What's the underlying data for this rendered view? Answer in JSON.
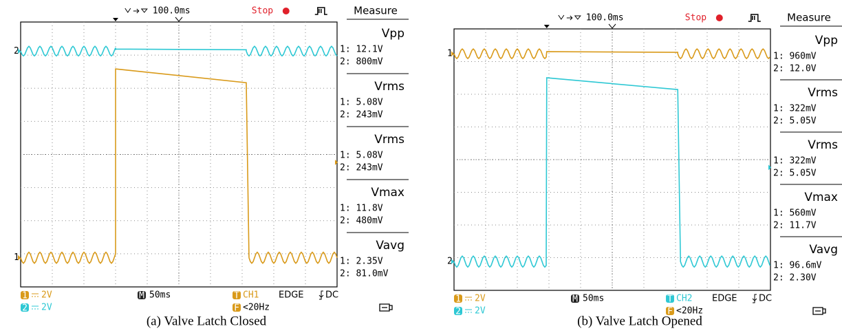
{
  "panels": [
    {
      "header": {
        "timebase": "100.0ms",
        "status": "Stop",
        "measure_title": "Measure"
      },
      "markers": {
        "top_channel": "2",
        "bottom_channel": "1"
      },
      "measurements": [
        {
          "name": "Vpp",
          "ch1": "1: 12.1V",
          "ch2": "2: 800mV"
        },
        {
          "name": "Vrms",
          "ch1": "1: 5.08V",
          "ch2": "2: 243mV"
        },
        {
          "name": "Vrms",
          "ch1": "1: 5.08V",
          "ch2": "2: 243mV"
        },
        {
          "name": "Vmax",
          "ch1": "1: 11.8V",
          "ch2": "2: 480mV"
        },
        {
          "name": "Vavg",
          "ch1": "1: 2.35V",
          "ch2": "2: 81.0mV"
        }
      ],
      "footer": {
        "ch1_badge": "1",
        "ch1_scale": "2V",
        "ch2_badge": "2",
        "ch2_scale": "2V",
        "time_badge": "M",
        "time_div": "50ms",
        "trigger_badge": "T",
        "trigger_source": "CH1",
        "trigger_type": "EDGE",
        "coupling": "DC",
        "freq_badge": "F",
        "trigger_freq": "<20Hz"
      },
      "caption": "(a) Valve Latch Closed"
    },
    {
      "header": {
        "timebase": "100.0ms",
        "status": "Stop",
        "measure_title": "Measure"
      },
      "markers": {
        "top_channel": "1",
        "bottom_channel": "2"
      },
      "measurements": [
        {
          "name": "Vpp",
          "ch1": "1: 960mV",
          "ch2": "2: 12.0V"
        },
        {
          "name": "Vrms",
          "ch1": "1: 322mV",
          "ch2": "2: 5.05V"
        },
        {
          "name": "Vrms",
          "ch1": "1: 322mV",
          "ch2": "2: 5.05V"
        },
        {
          "name": "Vmax",
          "ch1": "1: 560mV",
          "ch2": "2: 11.7V"
        },
        {
          "name": "Vavg",
          "ch1": "1: 96.6mV",
          "ch2": "2: 2.30V"
        }
      ],
      "footer": {
        "ch1_badge": "1",
        "ch1_scale": "2V",
        "ch2_badge": "2",
        "ch2_scale": "2V",
        "time_badge": "M",
        "time_div": "50ms",
        "trigger_badge": "T",
        "trigger_source": "CH2",
        "trigger_type": "EDGE",
        "coupling": "DC",
        "freq_badge": "F",
        "trigger_freq": "<20Hz"
      },
      "caption": "(b) Valve Latch Opened"
    }
  ]
}
